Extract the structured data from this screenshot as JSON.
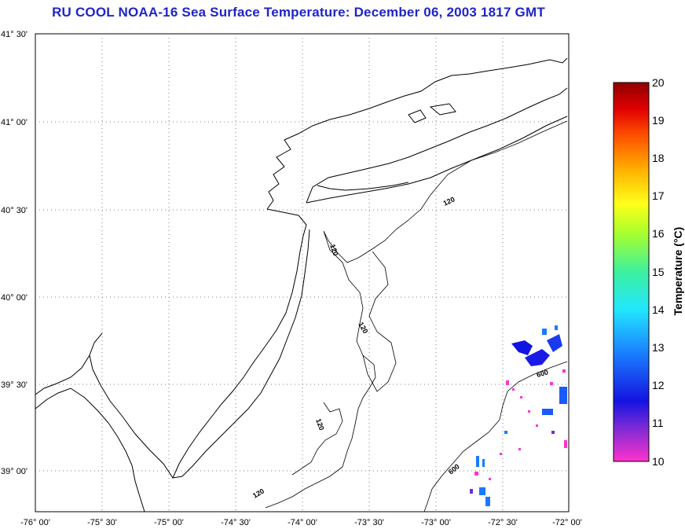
{
  "title": "RU COOL  NOAA-16  Sea Surface Temperature:  December 06, 2003 1817 GMT",
  "lat_labels": [
    "41° 30'",
    "41° 00'",
    "40° 30'",
    "40° 00'",
    "39° 30'",
    "39° 00'"
  ],
  "lon_labels": [
    "-76° 00'",
    "-75° 30'",
    "-75° 00'",
    "-74° 30'",
    "-74° 00'",
    "-73° 30'",
    "-73° 00'",
    "-72° 30'",
    "-72° 00'"
  ],
  "colorbar": {
    "label": "Temperature (°C)",
    "min": 10,
    "max": 20,
    "ticks": [
      "20",
      "19",
      "18",
      "17",
      "16",
      "15",
      "14",
      "13",
      "12",
      "11",
      "10"
    ],
    "colors": [
      "#ff33cc",
      "#7a2ad6",
      "#1414e0",
      "#1a7aff",
      "#22e6ff",
      "#3df0a0",
      "#a6ff2e",
      "#ffff1a",
      "#ffb000",
      "#ff5000",
      "#e00000",
      "#900000"
    ]
  },
  "isobaths": [
    "120",
    "120",
    "120",
    "120",
    "600",
    "600"
  ],
  "colors": {
    "title": "#1f25c8",
    "coast": "#000000",
    "grid": "#808080"
  }
}
